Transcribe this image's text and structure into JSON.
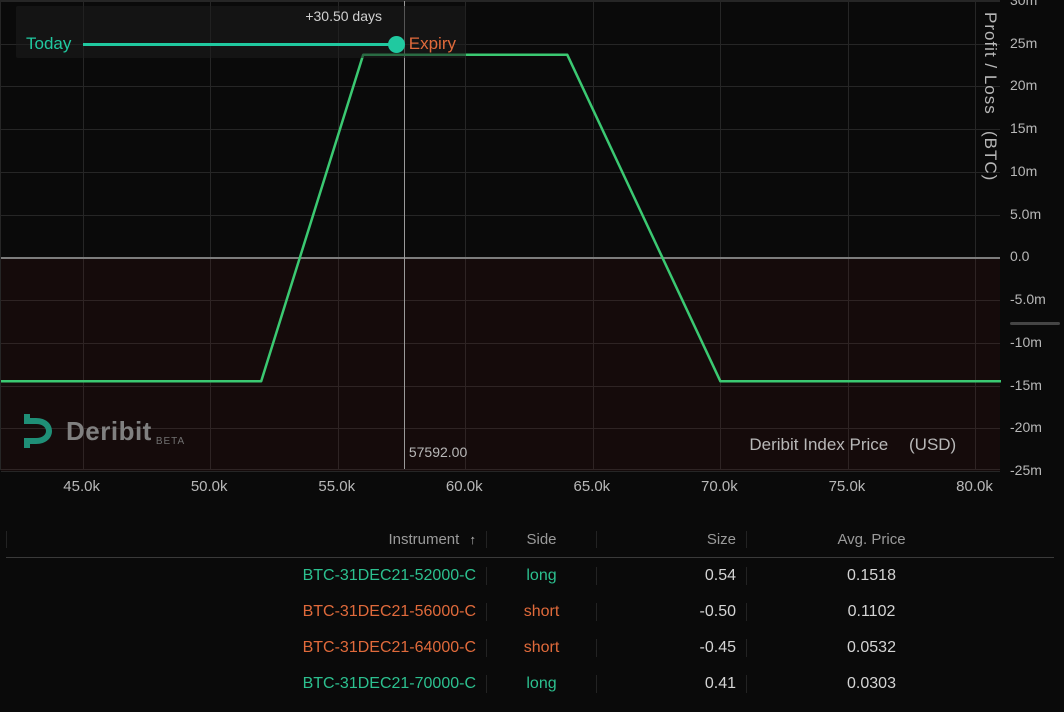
{
  "chart": {
    "type": "line",
    "y_title": "Profit / Loss",
    "y_unit": "(BTC)",
    "x_title": "Deribit Index Price",
    "x_unit": "(USD)",
    "background_color": "#0a0a0a",
    "grid_color": "#262626",
    "zero_line_color": "#7d7d7d",
    "line_color": "#3bc972",
    "line_width": 2.5,
    "neg_shade_color": "rgba(110,28,28,0.12)",
    "xlim": [
      41800,
      81000
    ],
    "ylim": [
      -25,
      30
    ],
    "xticks": [
      45000,
      50000,
      55000,
      60000,
      65000,
      70000,
      75000,
      80000
    ],
    "xtick_labels": [
      "45.0k",
      "50.0k",
      "55.0k",
      "60.0k",
      "65.0k",
      "70.0k",
      "75.0k",
      "80.0k"
    ],
    "yticks": [
      -25,
      -20,
      -15,
      -10,
      -5,
      0,
      5,
      10,
      15,
      20,
      25,
      30
    ],
    "ytick_labels": [
      "-25m",
      "-20m",
      "-15m",
      "-10m",
      "-5.0m",
      "0.0",
      "5.0m",
      "10m",
      "15m",
      "20m",
      "25m",
      "30m"
    ],
    "current_price_x": 57592,
    "current_price_label": "57592.00",
    "pl_points_usd_m": [
      [
        41800,
        -14.5
      ],
      [
        52000,
        -14.5
      ],
      [
        56000,
        23.7
      ],
      [
        64000,
        23.7
      ],
      [
        70000,
        -14.5
      ],
      [
        81000,
        -14.5
      ]
    ]
  },
  "time_slider": {
    "days_label": "+30.50 days",
    "today_label": "Today",
    "expiry_label": "Expiry",
    "position_pct": 100,
    "track_color": "#20c9a0",
    "today_color": "#20c9a0",
    "expiry_color": "#e06a3b"
  },
  "logo": {
    "word": "Deribit",
    "beta": "BETA",
    "mark_color": "#1f8f77",
    "text_color": "#808080"
  },
  "table": {
    "columns": [
      {
        "key": "instrument",
        "label": "Instrument",
        "sort": "asc"
      },
      {
        "key": "side",
        "label": "Side"
      },
      {
        "key": "size",
        "label": "Size"
      },
      {
        "key": "avg_price",
        "label": "Avg. Price"
      }
    ],
    "rows": [
      {
        "instrument": "BTC-31DEC21-52000-C",
        "side": "long",
        "side_class": "long",
        "size": "0.54",
        "avg_price": "0.1518"
      },
      {
        "instrument": "BTC-31DEC21-56000-C",
        "side": "short",
        "side_class": "short",
        "size": "-0.50",
        "avg_price": "0.1102"
      },
      {
        "instrument": "BTC-31DEC21-64000-C",
        "side": "short",
        "side_class": "short",
        "size": "-0.45",
        "avg_price": "0.0532"
      },
      {
        "instrument": "BTC-31DEC21-70000-C",
        "side": "long",
        "side_class": "long",
        "size": "0.41",
        "avg_price": "0.0303"
      }
    ],
    "long_color": "#2cc08f",
    "short_color": "#e06a3b",
    "text_color": "#d4d4d4",
    "header_color": "#9a9a9a"
  }
}
